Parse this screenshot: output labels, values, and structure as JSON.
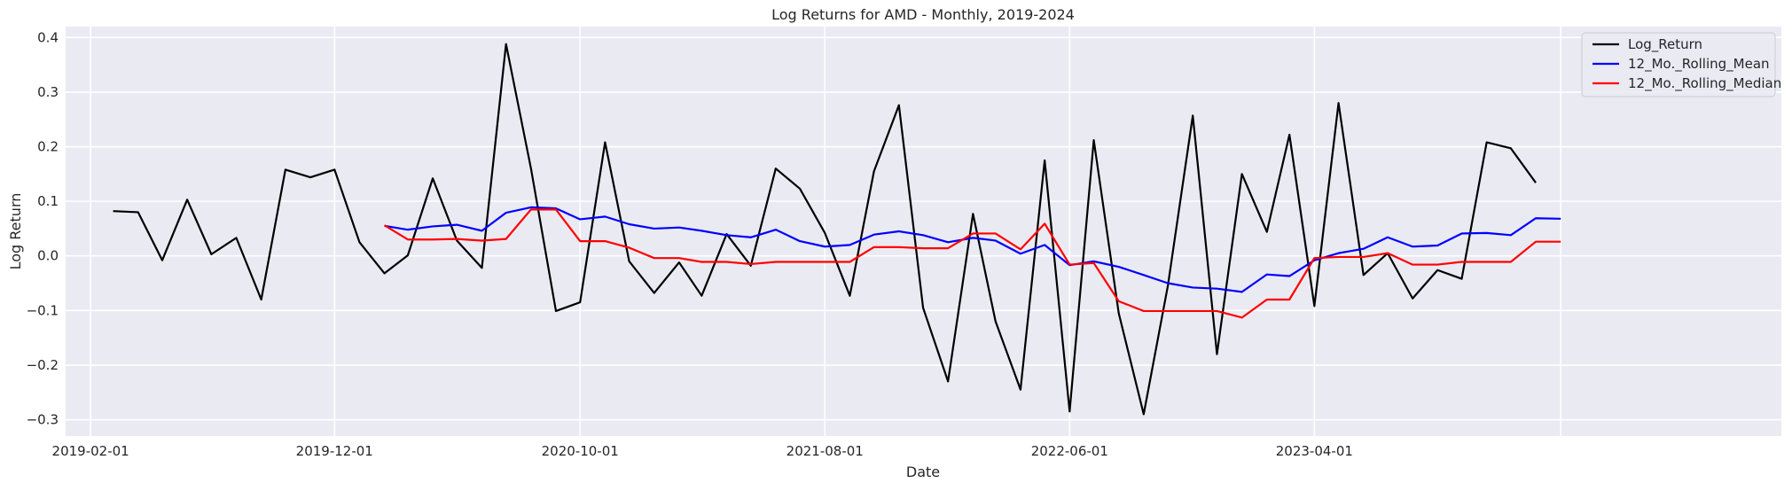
{
  "chart_data": {
    "type": "line",
    "title": "Log Returns for AMD - Monthly, 2019-2024",
    "xlabel": "Date",
    "ylabel": "Log Return",
    "x_type": "date",
    "xlim": [
      "2019-01-01",
      "2024-11-01"
    ],
    "ylim": [
      -0.33,
      0.42
    ],
    "x_ticks": [
      "2019-02-01",
      "2019-12-01",
      "2020-10-01",
      "2021-08-01",
      "2022-06-01",
      "2023-04-01"
    ],
    "y_ticks": [
      0.4,
      0.3,
      0.2,
      0.1,
      0.0,
      -0.1,
      -0.2,
      -0.3
    ],
    "y_tick_labels": [
      "0.4",
      "0.3",
      "0.2",
      "0.1",
      "0.0",
      "−0.1",
      "−0.2",
      "−0.3"
    ],
    "grid": true,
    "legend_position": "top-right",
    "series": [
      {
        "name": "Log_Return",
        "color": "#000000",
        "points": [
          [
            "2019-03-01",
            0.082
          ],
          [
            "2019-04-01",
            0.08
          ],
          [
            "2019-05-01",
            -0.008
          ],
          [
            "2019-06-01",
            0.103
          ],
          [
            "2019-07-01",
            0.003
          ],
          [
            "2019-08-01",
            0.033
          ],
          [
            "2019-09-01",
            -0.08
          ],
          [
            "2019-10-01",
            0.158
          ],
          [
            "2019-11-01",
            0.144
          ],
          [
            "2019-12-01",
            0.158
          ],
          [
            "2020-01-01",
            0.025
          ],
          [
            "2020-02-01",
            -0.032
          ],
          [
            "2020-03-01",
            0.001
          ],
          [
            "2020-04-01",
            0.142
          ],
          [
            "2020-05-01",
            0.028
          ],
          [
            "2020-06-01",
            -0.022
          ],
          [
            "2020-07-01",
            0.388
          ],
          [
            "2020-08-01",
            0.16
          ],
          [
            "2020-09-01",
            -0.101
          ],
          [
            "2020-10-01",
            -0.085
          ],
          [
            "2020-11-01",
            0.208
          ],
          [
            "2020-12-01",
            -0.01
          ],
          [
            "2021-01-01",
            -0.068
          ],
          [
            "2021-02-01",
            -0.012
          ],
          [
            "2021-03-01",
            -0.073
          ],
          [
            "2021-04-01",
            0.04
          ],
          [
            "2021-05-01",
            -0.018
          ],
          [
            "2021-06-01",
            0.16
          ],
          [
            "2021-07-01",
            0.123
          ],
          [
            "2021-08-01",
            0.042
          ],
          [
            "2021-09-01",
            -0.073
          ],
          [
            "2021-10-01",
            0.155
          ],
          [
            "2021-11-01",
            0.276
          ],
          [
            "2021-12-01",
            -0.095
          ],
          [
            "2022-01-01",
            -0.23
          ],
          [
            "2022-02-01",
            0.077
          ],
          [
            "2022-03-01",
            -0.12
          ],
          [
            "2022-04-01",
            -0.245
          ],
          [
            "2022-05-01",
            0.175
          ],
          [
            "2022-06-01",
            -0.285
          ],
          [
            "2022-07-01",
            0.212
          ],
          [
            "2022-08-01",
            -0.105
          ],
          [
            "2022-09-01",
            -0.29
          ],
          [
            "2022-10-01",
            -0.055
          ],
          [
            "2022-11-01",
            0.257
          ],
          [
            "2022-12-01",
            -0.18
          ],
          [
            "2023-01-01",
            0.15
          ],
          [
            "2023-02-01",
            0.044
          ],
          [
            "2023-03-01",
            0.222
          ],
          [
            "2023-04-01",
            -0.092
          ],
          [
            "2023-05-01",
            0.28
          ],
          [
            "2023-06-01",
            -0.035
          ],
          [
            "2023-07-01",
            0.005
          ],
          [
            "2023-08-01",
            -0.078
          ],
          [
            "2023-09-01",
            -0.026
          ],
          [
            "2023-10-01",
            -0.042
          ],
          [
            "2023-11-01",
            0.208
          ],
          [
            "2023-12-01",
            0.197
          ],
          [
            "2024-01-01",
            0.134
          ]
        ]
      },
      {
        "name": "12_Mo._Rolling_Mean",
        "color": "#0000ff",
        "points": [
          [
            "2020-02-01",
            0.055
          ],
          [
            "2020-03-01",
            0.048
          ],
          [
            "2020-04-01",
            0.054
          ],
          [
            "2020-05-01",
            0.057
          ],
          [
            "2020-06-01",
            0.046
          ],
          [
            "2020-07-01",
            0.079
          ],
          [
            "2020-08-01",
            0.089
          ],
          [
            "2020-09-01",
            0.087
          ],
          [
            "2020-10-01",
            0.067
          ],
          [
            "2020-11-01",
            0.072
          ],
          [
            "2020-12-01",
            0.058
          ],
          [
            "2021-01-01",
            0.05
          ],
          [
            "2021-02-01",
            0.052
          ],
          [
            "2021-03-01",
            0.046
          ],
          [
            "2021-04-01",
            0.038
          ],
          [
            "2021-05-01",
            0.034
          ],
          [
            "2021-06-01",
            0.048
          ],
          [
            "2021-07-01",
            0.027
          ],
          [
            "2021-08-01",
            0.017
          ],
          [
            "2021-09-01",
            0.02
          ],
          [
            "2021-10-01",
            0.039
          ],
          [
            "2021-11-01",
            0.045
          ],
          [
            "2021-12-01",
            0.038
          ],
          [
            "2022-01-01",
            0.025
          ],
          [
            "2022-02-01",
            0.033
          ],
          [
            "2022-03-01",
            0.028
          ],
          [
            "2022-04-01",
            0.004
          ],
          [
            "2022-05-01",
            0.02
          ],
          [
            "2022-06-01",
            -0.017
          ],
          [
            "2022-07-01",
            -0.01
          ],
          [
            "2022-08-01",
            -0.02
          ],
          [
            "2022-09-01",
            -0.035
          ],
          [
            "2022-10-01",
            -0.05
          ],
          [
            "2022-11-01",
            -0.058
          ],
          [
            "2022-12-01",
            -0.06
          ],
          [
            "2023-01-01",
            -0.066
          ],
          [
            "2023-02-01",
            -0.034
          ],
          [
            "2023-03-01",
            -0.037
          ],
          [
            "2023-04-01",
            -0.008
          ],
          [
            "2023-05-01",
            0.005
          ],
          [
            "2023-06-01",
            0.013
          ],
          [
            "2023-07-01",
            0.034
          ],
          [
            "2023-08-01",
            0.017
          ],
          [
            "2023-09-01",
            0.019
          ],
          [
            "2023-10-01",
            0.041
          ],
          [
            "2023-11-01",
            0.042
          ],
          [
            "2023-12-01",
            0.038
          ],
          [
            "2024-01-01",
            0.069
          ],
          [
            "2024-02-01",
            0.068
          ]
        ]
      },
      {
        "name": "12_Mo._Rolling_Median",
        "color": "#ff0000",
        "points": [
          [
            "2020-02-01",
            0.056
          ],
          [
            "2020-03-01",
            0.03
          ],
          [
            "2020-04-01",
            0.03
          ],
          [
            "2020-05-01",
            0.031
          ],
          [
            "2020-06-01",
            0.028
          ],
          [
            "2020-07-01",
            0.031
          ],
          [
            "2020-08-01",
            0.085
          ],
          [
            "2020-09-01",
            0.085
          ],
          [
            "2020-10-01",
            0.027
          ],
          [
            "2020-11-01",
            0.027
          ],
          [
            "2020-12-01",
            0.015
          ],
          [
            "2021-01-01",
            -0.004
          ],
          [
            "2021-02-01",
            -0.004
          ],
          [
            "2021-03-01",
            -0.011
          ],
          [
            "2021-04-01",
            -0.011
          ],
          [
            "2021-05-01",
            -0.015
          ],
          [
            "2021-06-01",
            -0.011
          ],
          [
            "2021-07-01",
            -0.011
          ],
          [
            "2021-08-01",
            -0.011
          ],
          [
            "2021-09-01",
            -0.011
          ],
          [
            "2021-10-01",
            0.016
          ],
          [
            "2021-11-01",
            0.016
          ],
          [
            "2021-12-01",
            0.014
          ],
          [
            "2022-01-01",
            0.014
          ],
          [
            "2022-02-01",
            0.041
          ],
          [
            "2022-03-01",
            0.041
          ],
          [
            "2022-04-01",
            0.012
          ],
          [
            "2022-05-01",
            0.059
          ],
          [
            "2022-06-01",
            -0.016
          ],
          [
            "2022-07-01",
            -0.013
          ],
          [
            "2022-08-01",
            -0.083
          ],
          [
            "2022-09-01",
            -0.101
          ],
          [
            "2022-10-01",
            -0.101
          ],
          [
            "2022-11-01",
            -0.101
          ],
          [
            "2022-12-01",
            -0.101
          ],
          [
            "2023-01-01",
            -0.113
          ],
          [
            "2023-02-01",
            -0.08
          ],
          [
            "2023-03-01",
            -0.08
          ],
          [
            "2023-04-01",
            -0.004
          ],
          [
            "2023-05-01",
            -0.002
          ],
          [
            "2023-06-01",
            -0.002
          ],
          [
            "2023-07-01",
            0.005
          ],
          [
            "2023-08-01",
            -0.016
          ],
          [
            "2023-09-01",
            -0.016
          ],
          [
            "2023-10-01",
            -0.011
          ],
          [
            "2023-11-01",
            -0.011
          ],
          [
            "2023-12-01",
            -0.011
          ],
          [
            "2024-01-01",
            0.026
          ],
          [
            "2024-02-01",
            0.026
          ]
        ]
      }
    ]
  }
}
